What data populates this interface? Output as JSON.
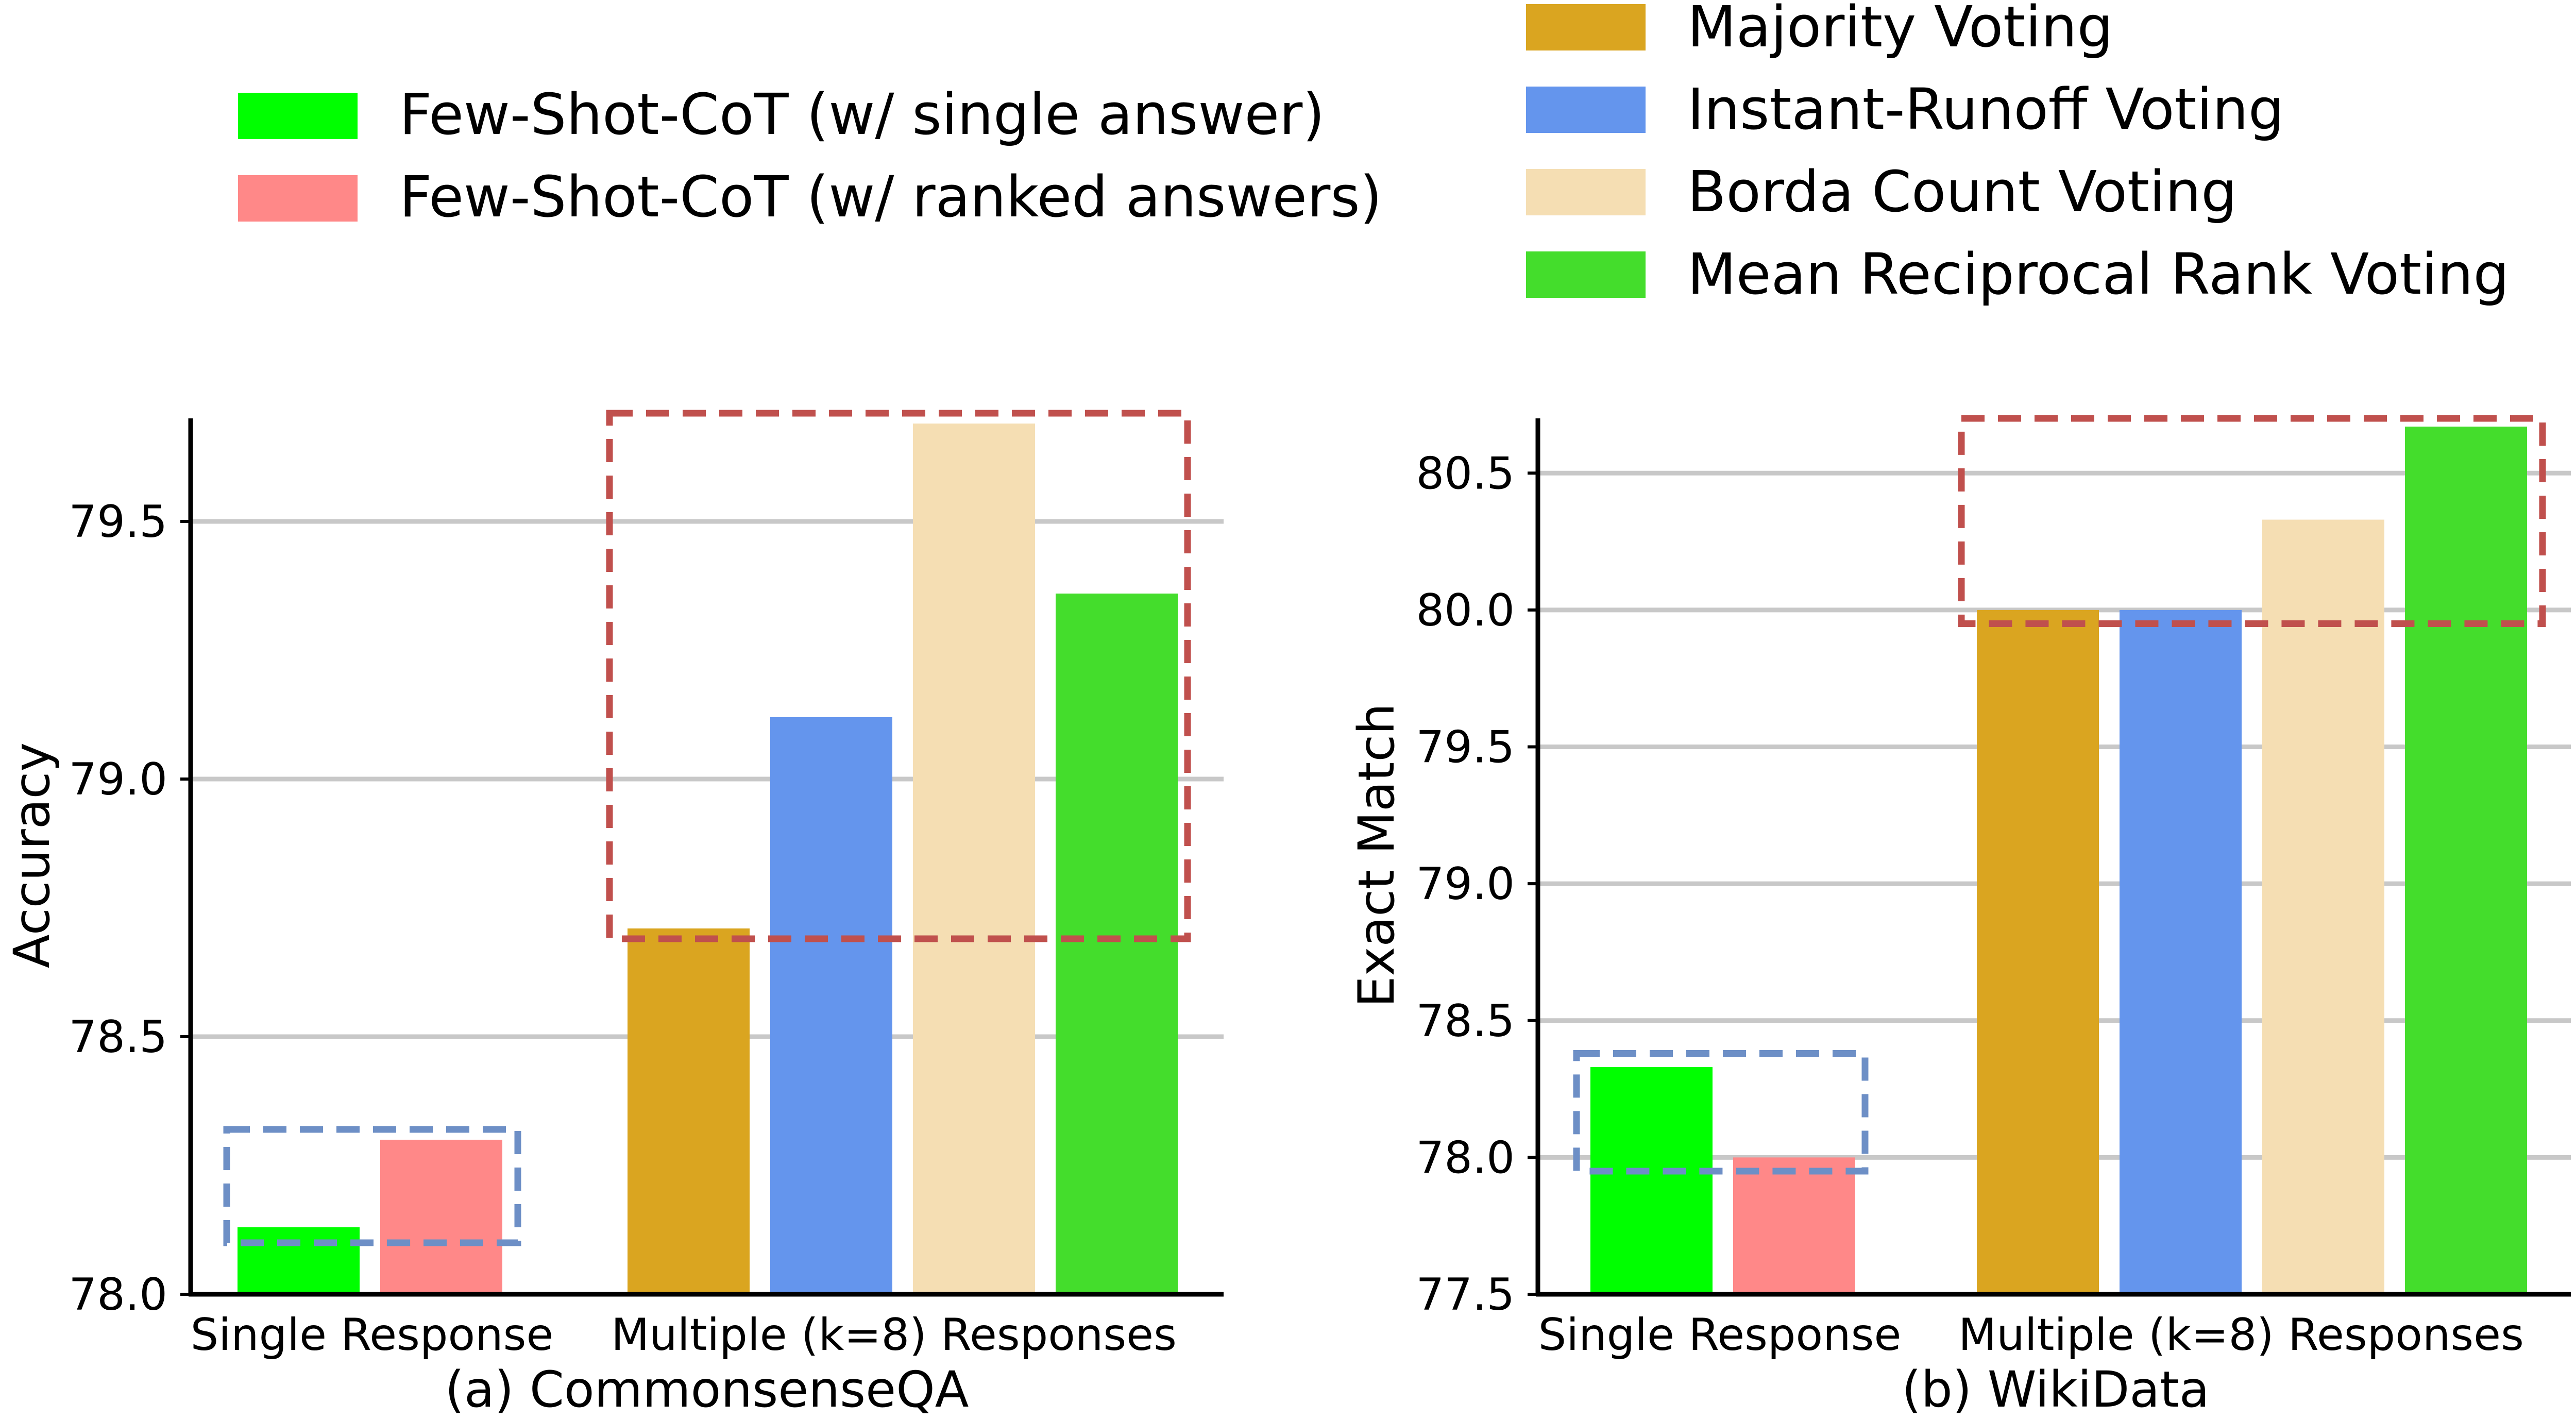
{
  "legend_left": [
    {
      "label": "Few-Shot-CoT (w/ single answer)",
      "color": "#00ff00"
    },
    {
      "label": "Few-Shot-CoT (w/ ranked answers)",
      "color": "#ff8888"
    }
  ],
  "legend_right": [
    {
      "label": "Majority Voting",
      "color": "#daa520"
    },
    {
      "label": "Instant-Runoff Voting",
      "color": "#6495ed"
    },
    {
      "label": "Borda Count Voting",
      "color": "#f5deb3"
    },
    {
      "label": "Mean Reciprocal Rank Voting",
      "color": "#44dd2c"
    }
  ],
  "chart_data": [
    {
      "type": "bar",
      "title": "(a) CommonsenseQA",
      "ylabel": "Accuracy",
      "ylim": [
        78.0,
        79.7
      ],
      "yticks": [
        "78.0",
        "78.5",
        "79.0",
        "79.5"
      ],
      "grid": "horizontal",
      "categories": [
        "Single Response",
        "Multiple (k=8) Responses"
      ],
      "series": [
        {
          "name": "Few-Shot-CoT (w/ single answer)",
          "group": "Single Response",
          "value": 78.13
        },
        {
          "name": "Few-Shot-CoT (w/ ranked answers)",
          "group": "Single Response",
          "value": 78.3
        },
        {
          "name": "Majority Voting",
          "group": "Multiple (k=8) Responses",
          "value": 78.71
        },
        {
          "name": "Instant-Runoff Voting",
          "group": "Multiple (k=8) Responses",
          "value": 79.12
        },
        {
          "name": "Borda Count Voting",
          "group": "Multiple (k=8) Responses",
          "value": 79.69
        },
        {
          "name": "Mean Reciprocal Rank Voting",
          "group": "Multiple (k=8) Responses",
          "value": 79.36
        }
      ],
      "highlight_boxes": [
        {
          "group": "Single Response",
          "color": "#6d8fc6",
          "y_range": [
            78.1,
            78.32
          ]
        },
        {
          "group": "Multiple (k=8) Responses",
          "color": "#c0504d",
          "y_range": [
            78.69,
            79.71
          ]
        }
      ]
    },
    {
      "type": "bar",
      "title": "(b) WikiData",
      "ylabel": "Exact Match",
      "ylim": [
        77.5,
        80.7
      ],
      "yticks": [
        "77.5",
        "78.0",
        "78.5",
        "79.0",
        "79.5",
        "80.0",
        "80.5"
      ],
      "grid": "horizontal",
      "categories": [
        "Single Response",
        "Multiple (k=8) Responses"
      ],
      "series": [
        {
          "name": "Few-Shot-CoT (w/ single answer)",
          "group": "Single Response",
          "value": 78.33
        },
        {
          "name": "Few-Shot-CoT (w/ ranked answers)",
          "group": "Single Response",
          "value": 78.0
        },
        {
          "name": "Majority Voting",
          "group": "Multiple (k=8) Responses",
          "value": 80.0
        },
        {
          "name": "Instant-Runoff Voting",
          "group": "Multiple (k=8) Responses",
          "value": 80.0
        },
        {
          "name": "Borda Count Voting",
          "group": "Multiple (k=8) Responses",
          "value": 80.33
        },
        {
          "name": "Mean Reciprocal Rank Voting",
          "group": "Multiple (k=8) Responses",
          "value": 80.67
        }
      ],
      "highlight_boxes": [
        {
          "group": "Single Response",
          "color": "#6d8fc6",
          "y_range": [
            77.95,
            78.38
          ]
        },
        {
          "group": "Multiple (k=8) Responses",
          "color": "#c0504d",
          "y_range": [
            79.95,
            80.7
          ]
        }
      ]
    }
  ]
}
